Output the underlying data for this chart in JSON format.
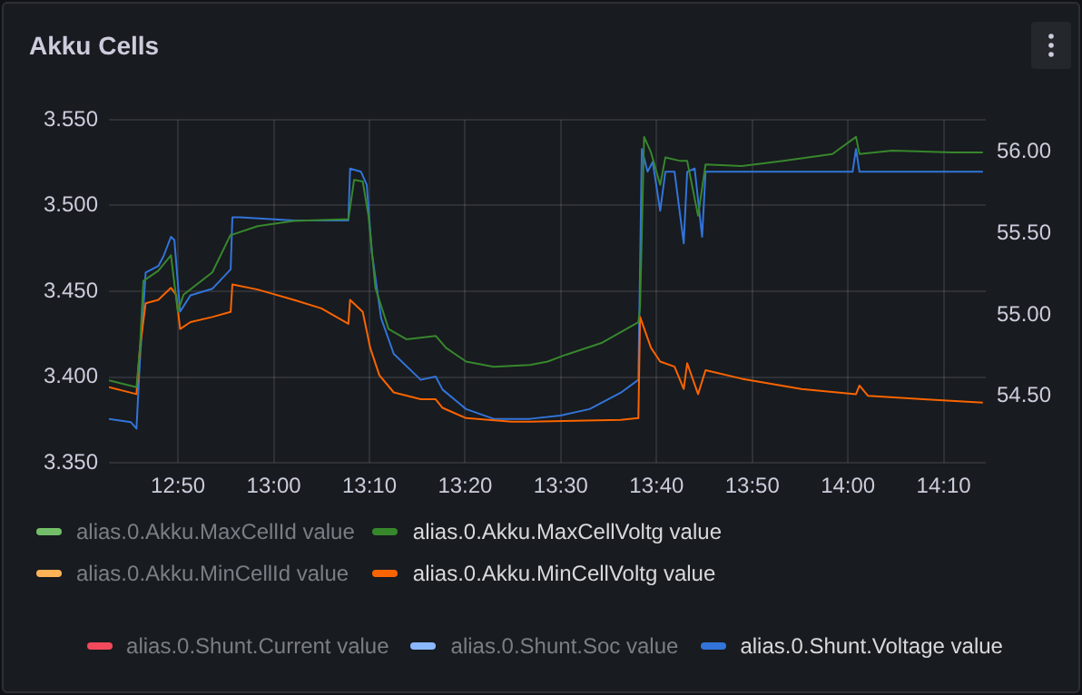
{
  "chart_data": {
    "type": "line",
    "title": "Akku Cells",
    "xlim": [
      12.713,
      14.24
    ],
    "xticks": [
      {
        "value": 12.8333,
        "label": "12:50"
      },
      {
        "value": 13.0,
        "label": "13:00"
      },
      {
        "value": 13.1667,
        "label": "13:10"
      },
      {
        "value": 13.3333,
        "label": "13:20"
      },
      {
        "value": 13.5,
        "label": "13:30"
      },
      {
        "value": 13.6667,
        "label": "13:40"
      },
      {
        "value": 13.8333,
        "label": "13:50"
      },
      {
        "value": 14.0,
        "label": "14:00"
      },
      {
        "value": 14.1667,
        "label": "14:10"
      }
    ],
    "ylim": [
      3.35,
      3.55
    ],
    "yticks": [
      {
        "value": 3.35,
        "label": "3.350"
      },
      {
        "value": 3.4,
        "label": "3.400"
      },
      {
        "value": 3.45,
        "label": "3.450"
      },
      {
        "value": 3.5,
        "label": "3.500"
      },
      {
        "value": 3.55,
        "label": "3.550"
      }
    ],
    "y2lim": [
      54.09,
      56.2
    ],
    "y2ticks": [
      {
        "value": 54.5,
        "label": "54.50"
      },
      {
        "value": 55.0,
        "label": "55.00"
      },
      {
        "value": 55.5,
        "label": "55.50"
      },
      {
        "value": 56.0,
        "label": "56.00"
      }
    ],
    "grid": true,
    "legend": "bottom",
    "marker": "none",
    "line_style": "solid",
    "series": [
      {
        "name": "alias.0.Akku.MaxCellId value",
        "color": "#73bf69"
      },
      {
        "name": "alias.0.Akku.MaxCellVoltg value",
        "color": "#37872d",
        "x": [
          12.713,
          12.761,
          12.767,
          12.773,
          12.799,
          12.821,
          12.833,
          12.843,
          12.893,
          12.925,
          12.928,
          12.972,
          13.035,
          13.13,
          13.14,
          13.155,
          13.165,
          13.177,
          13.2,
          13.231,
          13.282,
          13.3,
          13.335,
          13.383,
          13.446,
          13.477,
          13.509,
          13.572,
          13.635,
          13.638,
          13.645,
          13.657,
          13.673,
          13.682,
          13.708,
          13.72,
          13.739,
          13.752,
          13.815,
          13.888,
          13.973,
          14.014,
          14.02,
          14.077,
          14.181,
          14.235
        ],
        "values": [
          3.398,
          3.394,
          3.417,
          3.456,
          3.462,
          3.471,
          3.438,
          3.448,
          3.461,
          3.483,
          3.483,
          3.488,
          3.491,
          3.492,
          3.515,
          3.514,
          3.494,
          3.452,
          3.428,
          3.422,
          3.424,
          3.417,
          3.409,
          3.406,
          3.407,
          3.409,
          3.413,
          3.42,
          3.432,
          3.441,
          3.54,
          3.531,
          3.512,
          3.528,
          3.526,
          3.526,
          3.494,
          3.524,
          3.523,
          3.526,
          3.53,
          3.54,
          3.53,
          3.532,
          3.531,
          3.531
        ]
      },
      {
        "name": "alias.0.Akku.MinCellId value",
        "color": "#ffb357"
      },
      {
        "name": "alias.0.Akku.MinCellVoltg value",
        "color": "#fa6400",
        "x": [
          12.713,
          12.761,
          12.767,
          12.777,
          12.799,
          12.821,
          12.83,
          12.837,
          12.855,
          12.893,
          12.925,
          12.928,
          12.972,
          13.035,
          13.083,
          13.13,
          13.133,
          13.155,
          13.168,
          13.184,
          13.209,
          13.256,
          13.282,
          13.294,
          13.335,
          13.414,
          13.446,
          13.604,
          13.635,
          13.638,
          13.657,
          13.673,
          13.698,
          13.714,
          13.72,
          13.739,
          13.752,
          13.815,
          13.919,
          14.014,
          14.02,
          14.035,
          14.131,
          14.235
        ],
        "values": [
          3.394,
          3.39,
          3.417,
          3.443,
          3.445,
          3.452,
          3.448,
          3.428,
          3.432,
          3.435,
          3.438,
          3.454,
          3.451,
          3.445,
          3.44,
          3.431,
          3.445,
          3.438,
          3.417,
          3.401,
          3.391,
          3.387,
          3.387,
          3.382,
          3.376,
          3.374,
          3.374,
          3.375,
          3.376,
          3.435,
          3.417,
          3.409,
          3.406,
          3.393,
          3.408,
          3.39,
          3.404,
          3.399,
          3.393,
          3.39,
          3.395,
          3.389,
          3.387,
          3.385
        ]
      },
      {
        "name": "alias.0.Shunt.Current value",
        "color": "#f2495c",
        "axis": "y2"
      },
      {
        "name": "alias.0.Shunt.Soc value",
        "color": "#8ab8ff",
        "axis": "y2"
      },
      {
        "name": "alias.0.Shunt.Voltage value",
        "color": "#3274d9",
        "axis": "y2",
        "x": [
          12.713,
          12.751,
          12.761,
          12.767,
          12.777,
          12.799,
          12.808,
          12.821,
          12.827,
          12.837,
          12.855,
          12.893,
          12.925,
          12.928,
          12.941,
          13.035,
          13.13,
          13.133,
          13.152,
          13.162,
          13.171,
          13.187,
          13.209,
          13.256,
          13.282,
          13.294,
          13.335,
          13.383,
          13.446,
          13.499,
          13.55,
          13.604,
          13.635,
          13.641,
          13.651,
          13.66,
          13.673,
          13.682,
          13.698,
          13.714,
          13.72,
          13.733,
          13.746,
          13.752,
          13.866,
          14.008,
          14.014,
          14.02,
          14.131,
          14.235
        ],
        "values": [
          54.36,
          54.34,
          54.3,
          54.72,
          55.26,
          55.3,
          55.36,
          55.48,
          55.46,
          55.02,
          55.12,
          55.16,
          55.28,
          55.6,
          55.6,
          55.58,
          55.58,
          55.9,
          55.88,
          55.8,
          55.38,
          54.98,
          54.76,
          54.6,
          54.62,
          54.54,
          54.42,
          54.36,
          54.36,
          54.38,
          54.42,
          54.52,
          54.6,
          56.02,
          55.88,
          55.94,
          55.64,
          55.88,
          55.88,
          55.44,
          55.88,
          55.9,
          55.48,
          55.88,
          55.88,
          55.88,
          56.02,
          55.88,
          55.88,
          55.88
        ]
      }
    ]
  }
}
